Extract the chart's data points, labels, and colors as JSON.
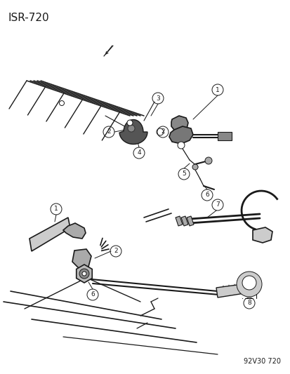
{
  "title": "ISR-720",
  "footer": "92V30 720",
  "bg_color": "#ffffff",
  "line_color": "#1a1a1a",
  "title_fontsize": 11,
  "footer_fontsize": 7,
  "label_fontsize": 7
}
